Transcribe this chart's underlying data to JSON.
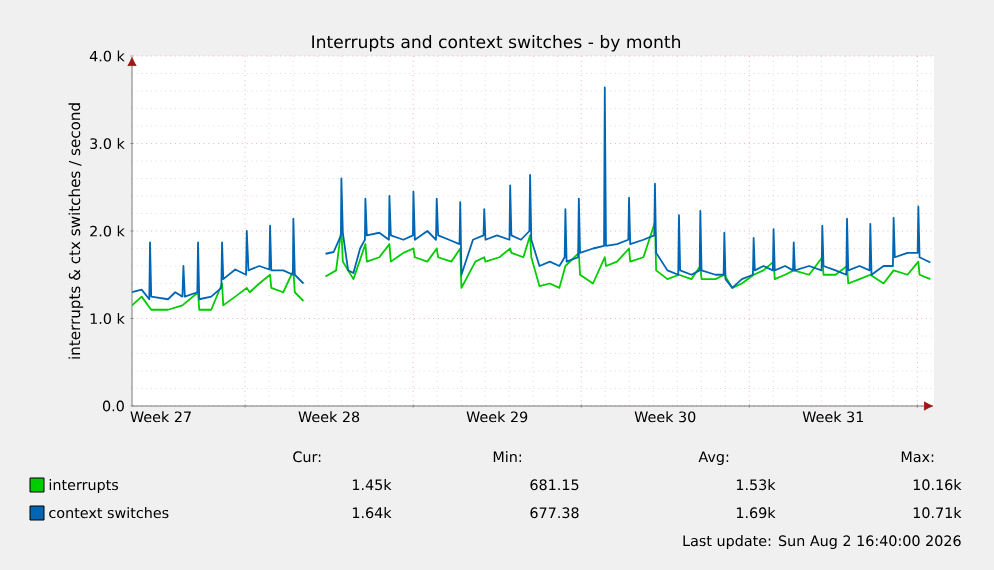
{
  "chart_data": {
    "type": "line",
    "title": "Interrupts and context switches - by month",
    "ylabel": "interrupts & ctx switches / second",
    "xlim": [
      "2026-06-30T07:00",
      "2026-08-02T16:40"
    ],
    "ylim": [
      0,
      4000
    ],
    "xticks": [
      {
        "value": "2026-07-01T12:00",
        "label": "Week 27"
      },
      {
        "value": "2026-07-05T00:00",
        "label": null
      },
      {
        "value": "2026-07-08T12:00",
        "label": "Week 28"
      },
      {
        "value": "2026-07-12T00:00",
        "label": null
      },
      {
        "value": "2026-07-15T12:00",
        "label": "Week 29"
      },
      {
        "value": "2026-07-19T00:00",
        "label": null
      },
      {
        "value": "2026-07-22T12:00",
        "label": "Week 30"
      },
      {
        "value": "2026-07-26T00:00",
        "label": null
      },
      {
        "value": "2026-07-29T12:00",
        "label": "Week 31"
      },
      {
        "value": "2026-08-02T00:00",
        "label": null
      }
    ],
    "yticks": [
      {
        "value": 0,
        "label": "0.0"
      },
      {
        "value": 1000,
        "label": "1.0 k"
      },
      {
        "value": 2000,
        "label": "2.0 k"
      },
      {
        "value": 3000,
        "label": "3.0 k"
      },
      {
        "value": 4000,
        "label": "4.0 k"
      }
    ],
    "grid": true,
    "legend": "bottom",
    "marker": "none",
    "line_style": "solid",
    "series": [
      {
        "name": "interrupts",
        "color": "#00cc00",
        "x": [
          "2026-06-30T07:00",
          "2026-06-30T16:36",
          "2026-07-01T02:12",
          "2026-07-01T19:00",
          "2026-07-02T09:24",
          "2026-07-03T01:00",
          "2026-07-03T02:12",
          "2026-07-03T14:12",
          "2026-07-04T01:00",
          "2026-07-04T02:12",
          "2026-07-04T14:12",
          "2026-07-05T01:43",
          "2026-07-05T04:36",
          "2026-07-05T14:12",
          "2026-07-06T01:00",
          "2026-07-06T02:12",
          "2026-07-06T14:12",
          "2026-07-07T00:17",
          "2026-07-07T01:43",
          "2026-07-07T10:22",
          "2026-07-07T21:24",
          "2026-07-08T08:26",
          "2026-07-08T19:00",
          "2026-07-09T00:17",
          "2026-07-09T01:43",
          "2026-07-09T12:17",
          "2026-07-10T00:17",
          "2026-07-10T01:43",
          "2026-07-10T14:12",
          "2026-07-11T00:17",
          "2026-07-11T01:43",
          "2026-07-11T14:12",
          "2026-07-12T00:17",
          "2026-07-12T01:43",
          "2026-07-12T14:12",
          "2026-07-12T23:34",
          "2026-07-13T01:00",
          "2026-07-13T14:12",
          "2026-07-13T23:05",
          "2026-07-14T00:17",
          "2026-07-14T14:12",
          "2026-07-14T23:05",
          "2026-07-15T00:17",
          "2026-07-15T14:12",
          "2026-07-16T01:00",
          "2026-07-16T02:12",
          "2026-07-16T14:12",
          "2026-07-16T20:55",
          "2026-07-16T22:07",
          "2026-07-17T06:17",
          "2026-07-17T16:36",
          "2026-07-18T02:12",
          "2026-07-18T08:12",
          "2026-07-18T21:38",
          "2026-07-18T22:50",
          "2026-07-19T11:48",
          "2026-07-19T23:34",
          "2026-07-20T00:46",
          "2026-07-20T11:48",
          "2026-07-20T23:48",
          "2026-07-21T01:00",
          "2026-07-21T14:12",
          "2026-07-22T01:43",
          "2026-07-22T02:55",
          "2026-07-22T14:12",
          "2026-07-23T01:43",
          "2026-07-23T14:12",
          "2026-07-23T23:05",
          "2026-07-24T00:17",
          "2026-07-24T14:12",
          "2026-07-24T23:05",
          "2026-07-25T07:00",
          "2026-07-25T16:36",
          "2026-07-26T04:22",
          "2026-07-26T14:12",
          "2026-07-27T00:17",
          "2026-07-27T01:29",
          "2026-07-27T11:48",
          "2026-07-27T20:26",
          "2026-07-28T11:48",
          "2026-07-29T01:00",
          "2026-07-29T02:12",
          "2026-07-29T14:12",
          "2026-07-30T01:43",
          "2026-07-30T02:55",
          "2026-07-30T14:12",
          "2026-07-31T01:00",
          "2026-07-31T14:12",
          "2026-08-01T00:17",
          "2026-08-01T14:12",
          "2026-08-02T01:00",
          "2026-08-02T02:12",
          "2026-08-02T13:00"
        ],
        "values": [
          1150,
          1250,
          1100,
          1100,
          1150,
          1300,
          1100,
          1100,
          1400,
          1150,
          1250,
          1350,
          1300,
          1400,
          1500,
          1350,
          1300,
          1550,
          1300,
          1200,
          null,
          1480,
          1550,
          2020,
          1650,
          1450,
          1850,
          1650,
          1700,
          1850,
          1650,
          1750,
          1800,
          1700,
          1650,
          1800,
          1700,
          1650,
          1800,
          1350,
          1650,
          1700,
          1650,
          1700,
          1800,
          1750,
          1700,
          1950,
          1700,
          1370,
          1400,
          1350,
          1600,
          1750,
          1500,
          1400,
          1700,
          1600,
          1650,
          1800,
          1650,
          1700,
          2100,
          1550,
          1450,
          1500,
          1450,
          1600,
          1450,
          1450,
          1500,
          1350,
          1400,
          1500,
          1550,
          1650,
          1450,
          1500,
          1550,
          1500,
          1700,
          1500,
          1500,
          1600,
          1400,
          1450,
          1500,
          1400,
          1550,
          1500,
          1650,
          1500,
          1450
        ]
      },
      {
        "name": "context switches",
        "color": "#0066b3",
        "x": [
          "2026-06-30T07:00",
          "2026-06-30T16:36",
          "2026-07-01T00:17",
          "2026-07-01T01:00",
          "2026-07-01T02:12",
          "2026-07-01T19:00",
          "2026-07-02T02:12",
          "2026-07-02T09:24",
          "2026-07-02T10:22",
          "2026-07-02T11:48",
          "2026-07-03T00:17",
          "2026-07-03T01:00",
          "2026-07-03T02:12",
          "2026-07-03T14:12",
          "2026-07-04T00:17",
          "2026-07-04T01:00",
          "2026-07-04T02:12",
          "2026-07-04T14:12",
          "2026-07-05T01:00",
          "2026-07-05T01:43",
          "2026-07-05T03:24",
          "2026-07-05T14:12",
          "2026-07-06T00:17",
          "2026-07-06T01:00",
          "2026-07-06T02:12",
          "2026-07-06T14:12",
          "2026-07-06T23:48",
          "2026-07-07T00:17",
          "2026-07-07T01:43",
          "2026-07-07T10:22",
          "2026-07-07T21:24",
          "2026-07-08T08:26",
          "2026-07-08T16:36",
          "2026-07-08T23:48",
          "2026-07-09T00:17",
          "2026-07-09T01:43",
          "2026-07-09T07:00",
          "2026-07-09T12:17",
          "2026-07-09T19:00",
          "2026-07-09T23:48",
          "2026-07-10T00:17",
          "2026-07-10T01:43",
          "2026-07-10T14:12",
          "2026-07-10T23:48",
          "2026-07-11T00:17",
          "2026-07-11T01:43",
          "2026-07-11T14:12",
          "2026-07-11T23:48",
          "2026-07-12T00:17",
          "2026-07-12T01:43",
          "2026-07-12T14:12",
          "2026-07-12T22:50",
          "2026-07-12T23:34",
          "2026-07-13T01:00",
          "2026-07-13T11:48",
          "2026-07-13T22:22",
          "2026-07-13T23:05",
          "2026-07-14T00:17",
          "2026-07-14T11:48",
          "2026-07-14T22:22",
          "2026-07-14T23:05",
          "2026-07-15T00:17",
          "2026-07-15T11:48",
          "2026-07-16T00:17",
          "2026-07-16T01:00",
          "2026-07-16T02:12",
          "2026-07-16T11:48",
          "2026-07-16T20:12",
          "2026-07-16T20:55",
          "2026-07-16T22:07",
          "2026-07-17T06:17",
          "2026-07-17T16:36",
          "2026-07-18T02:12",
          "2026-07-18T07:29",
          "2026-07-18T08:12",
          "2026-07-18T09:24",
          "2026-07-18T20:55",
          "2026-07-18T21:38",
          "2026-07-18T22:50",
          "2026-07-19T11:48",
          "2026-07-19T22:50",
          "2026-07-19T23:34",
          "2026-07-20T00:46",
          "2026-07-20T11:48",
          "2026-07-20T23:05",
          "2026-07-20T23:48",
          "2026-07-21T01:00",
          "2026-07-21T14:12",
          "2026-07-22T01:00",
          "2026-07-22T01:43",
          "2026-07-22T02:55",
          "2026-07-22T14:12",
          "2026-07-23T01:00",
          "2026-07-23T01:43",
          "2026-07-23T02:55",
          "2026-07-23T14:12",
          "2026-07-23T22:22",
          "2026-07-23T23:05",
          "2026-07-24T00:17",
          "2026-07-24T14:12",
          "2026-07-24T22:22",
          "2026-07-24T23:05",
          "2026-07-25T00:17",
          "2026-07-25T07:00",
          "2026-07-25T16:36",
          "2026-07-26T03:38",
          "2026-07-26T04:22",
          "2026-07-26T05:34",
          "2026-07-26T14:12",
          "2026-07-26T23:34",
          "2026-07-27T00:17",
          "2026-07-27T01:29",
          "2026-07-27T11:48",
          "2026-07-27T19:43",
          "2026-07-27T20:26",
          "2026-07-27T21:38",
          "2026-07-28T11:48",
          "2026-07-29T00:17",
          "2026-07-29T01:00",
          "2026-07-29T02:12",
          "2026-07-29T14:12",
          "2026-07-30T01:00",
          "2026-07-30T01:43",
          "2026-07-30T02:55",
          "2026-07-30T14:12",
          "2026-07-31T00:17",
          "2026-07-31T01:00",
          "2026-07-31T02:12",
          "2026-07-31T14:12",
          "2026-07-31T23:34",
          "2026-08-01T00:17",
          "2026-08-01T01:29",
          "2026-08-01T14:12",
          "2026-08-02T00:17",
          "2026-08-02T01:00",
          "2026-08-02T02:12",
          "2026-08-02T13:00"
        ],
        "values": [
          1300,
          1330,
          1220,
          1870,
          1250,
          1220,
          1300,
          1250,
          1600,
          1250,
          1300,
          1870,
          1220,
          1250,
          1350,
          1870,
          1450,
          1560,
          1500,
          2000,
          1550,
          1600,
          1560,
          2060,
          1550,
          1550,
          1500,
          2140,
          1500,
          1400,
          null,
          1740,
          1760,
          1950,
          2600,
          1980,
          1550,
          1520,
          1800,
          1900,
          2370,
          1950,
          1980,
          1900,
          2400,
          1950,
          1900,
          1950,
          2450,
          1900,
          2000,
          1900,
          2370,
          1950,
          1900,
          1850,
          2330,
          1500,
          1900,
          1950,
          2250,
          1900,
          1950,
          1900,
          2520,
          1950,
          1900,
          2000,
          2640,
          1900,
          1600,
          1650,
          1600,
          1700,
          2250,
          1650,
          1700,
          2370,
          1750,
          1800,
          1830,
          3640,
          1830,
          1850,
          1900,
          2380,
          1850,
          1900,
          1950,
          2540,
          1750,
          1550,
          1500,
          2180,
          1550,
          1500,
          1550,
          2230,
          1550,
          1500,
          1500,
          1980,
          1450,
          1350,
          1450,
          1500,
          1920,
          1550,
          1600,
          1550,
          2020,
          1550,
          1600,
          1550,
          1870,
          1550,
          1600,
          1550,
          2060,
          1600,
          1550,
          1500,
          2140,
          1550,
          1600,
          1550,
          2080,
          1500,
          1600,
          1600,
          2150,
          1700,
          1750,
          1750,
          2280,
          1700,
          1640
        ]
      }
    ],
    "annotations": [
      "Cur:",
      "Min:",
      "Avg:",
      "Max:",
      "1.45k",
      "681.15",
      "1.53k",
      "10.16k",
      "1.64k",
      "677.38",
      "1.69k",
      "10.71k",
      "Last update: Sun Aug  2 16:40:00 2026"
    ]
  }
}
